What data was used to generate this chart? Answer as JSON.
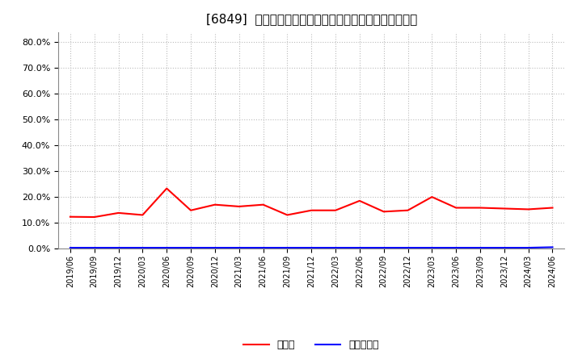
{
  "title": "[6849]  現預金、有利子負債の総資産に対する比率の推移",
  "x_labels": [
    "2019/06",
    "2019/09",
    "2019/12",
    "2020/03",
    "2020/06",
    "2020/09",
    "2020/12",
    "2021/03",
    "2021/06",
    "2021/09",
    "2021/12",
    "2022/03",
    "2022/06",
    "2022/09",
    "2022/12",
    "2023/03",
    "2023/06",
    "2023/09",
    "2023/12",
    "2024/03",
    "2024/06"
  ],
  "cash_values": [
    0.123,
    0.122,
    0.138,
    0.13,
    0.233,
    0.148,
    0.17,
    0.163,
    0.17,
    0.13,
    0.148,
    0.148,
    0.185,
    0.143,
    0.148,
    0.2,
    0.158,
    0.158,
    0.155,
    0.152,
    0.158
  ],
  "debt_values": [
    0.003,
    0.003,
    0.003,
    0.003,
    0.003,
    0.003,
    0.003,
    0.003,
    0.003,
    0.003,
    0.003,
    0.003,
    0.003,
    0.003,
    0.003,
    0.003,
    0.003,
    0.003,
    0.003,
    0.003,
    0.005
  ],
  "cash_color": "#ff0000",
  "debt_color": "#0000ff",
  "background_color": "#ffffff",
  "plot_bg_color": "#ffffff",
  "grid_color": "#bbbbbb",
  "title_fontsize": 11,
  "ylim": [
    0.0,
    0.84
  ],
  "yticks": [
    0.0,
    0.1,
    0.2,
    0.3,
    0.4,
    0.5,
    0.6,
    0.7,
    0.8
  ],
  "legend_cash": "現預金",
  "legend_debt": "有利子負債"
}
